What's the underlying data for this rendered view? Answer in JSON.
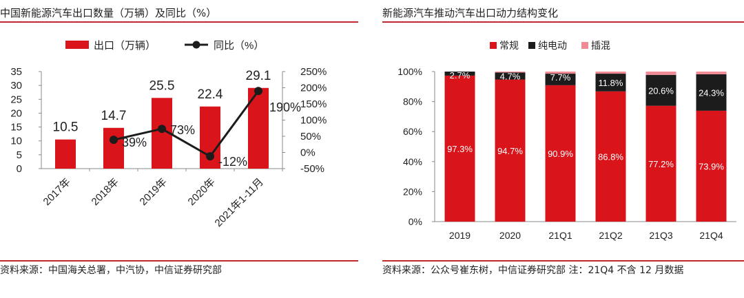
{
  "colors": {
    "red": "#d9141b",
    "black": "#1c1c1c",
    "pink": "#f08a95",
    "rule": "#c0282c",
    "axis": "#888888"
  },
  "left_title": "中国新能源汽车出口数量（万辆）及同比（%）",
  "left_source": "资料来源：中国海关总署，中汽协，中信证券研究部",
  "right_title": "新能源汽车推动汽车出口动力结构变化",
  "right_source": "资料来源：公众号崔东树，中信证券研究部 注：21Q4 不含 12 月数据",
  "chart_data": [
    {
      "type": "bar",
      "title": "中国新能源汽车出口数量（万辆）及同比（%）",
      "categories": [
        "2017年",
        "2018年",
        "2019年",
        "2020年",
        "2021年1-11月"
      ],
      "series": [
        {
          "name": "出口（万辆）",
          "type": "bar",
          "axis": "left",
          "values": [
            10.5,
            14.7,
            25.5,
            22.4,
            29.1
          ],
          "labels": [
            "10.5",
            "14.7",
            "25.5",
            "22.4",
            "29.1"
          ]
        },
        {
          "name": "同比（%）",
          "type": "line",
          "axis": "right",
          "values": [
            null,
            39,
            73,
            -12,
            190
          ],
          "labels": [
            "",
            "39%",
            "73%",
            "-12%",
            "190%"
          ]
        }
      ],
      "y_left": {
        "min": 0,
        "max": 35,
        "step": 5,
        "ticks": [
          "0",
          "5",
          "10",
          "15",
          "20",
          "25",
          "30",
          "35"
        ]
      },
      "y_right": {
        "min": -50,
        "max": 250,
        "step": 50,
        "ticks": [
          "-50%",
          "0%",
          "50%",
          "100%",
          "150%",
          "200%",
          "250%"
        ]
      },
      "legend_position": "top-center",
      "grid": false
    },
    {
      "type": "bar",
      "stacked": true,
      "percent": true,
      "title": "新能源汽车推动汽车出口动力结构变化",
      "categories": [
        "2019",
        "2020",
        "21Q1",
        "21Q2",
        "21Q3",
        "21Q4"
      ],
      "series": [
        {
          "name": "常规",
          "values": [
            97.3,
            94.7,
            90.9,
            86.8,
            77.2,
            73.9
          ],
          "labels": [
            "97.3%",
            "94.7%",
            "90.9%",
            "86.8%",
            "77.2%",
            "73.9%"
          ]
        },
        {
          "name": "纯电动",
          "values": [
            2.7,
            4.7,
            7.7,
            11.8,
            20.6,
            24.3
          ],
          "labels": [
            "2.7%",
            "4.7%",
            "7.7%",
            "11.8%",
            "20.6%",
            "24.3%"
          ]
        },
        {
          "name": "插混",
          "values": [
            0.0,
            0.6,
            1.4,
            1.4,
            2.2,
            1.8
          ]
        }
      ],
      "y": {
        "min": 0,
        "max": 100,
        "step": 20,
        "ticks": [
          "0%",
          "20%",
          "40%",
          "60%",
          "80%",
          "100%"
        ]
      },
      "legend_position": "top-center",
      "grid": false
    }
  ]
}
